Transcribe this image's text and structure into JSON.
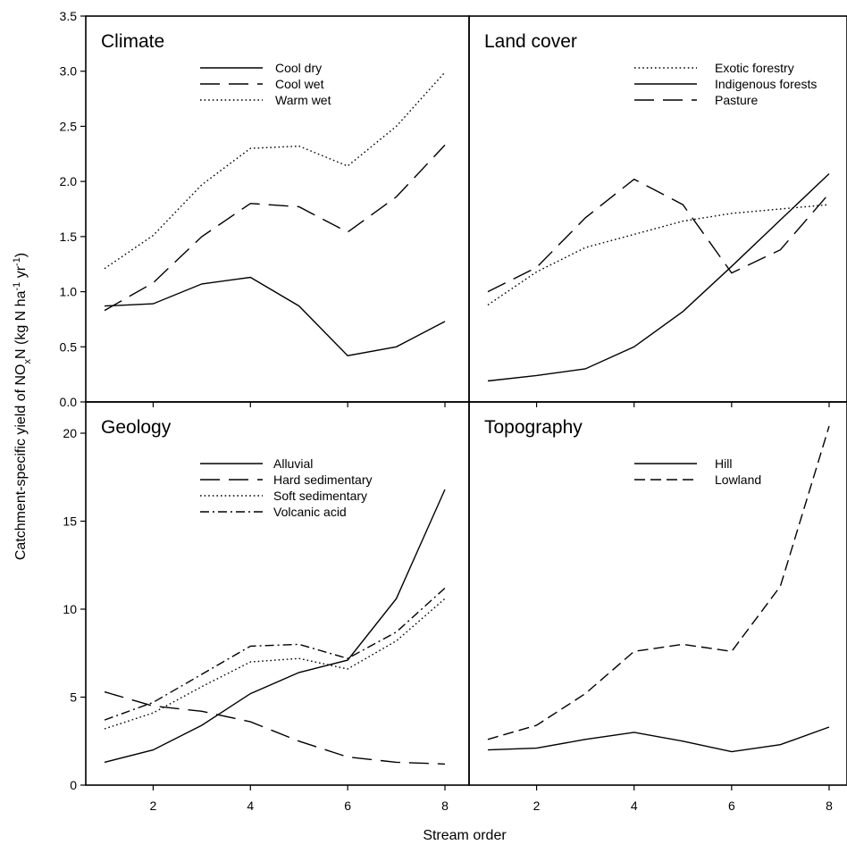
{
  "figure": {
    "ylabel_main": "Catchment-specific yield of NO",
    "ylabel_sub1": "x",
    "ylabel_mid": "N (kg N ha",
    "ylabel_sup1": "-1",
    "ylabel_mid2": " yr",
    "ylabel_sup2": "-1",
    "ylabel_end": ")",
    "xlabel": "Stream order"
  },
  "chart_data": [
    {
      "type": "line",
      "title": "Climate",
      "xlim": [
        0.5,
        8.5
      ],
      "ylim": [
        0,
        3.5
      ],
      "x": [
        1,
        2,
        3,
        4,
        5,
        6,
        7,
        8
      ],
      "xticks": [
        "2",
        "4",
        "6",
        "8"
      ],
      "yticks": [
        "0.0",
        "0.5",
        "1.0",
        "1.5",
        "2.0",
        "2.5",
        "3.0",
        "3.5"
      ],
      "legend_position": "top-right",
      "series": [
        {
          "name": "Cool dry",
          "style": "solid",
          "values": [
            0.87,
            0.89,
            1.07,
            1.13,
            0.87,
            0.42,
            0.5,
            0.73
          ]
        },
        {
          "name": "Cool wet",
          "style": "long-dash",
          "values": [
            0.83,
            1.08,
            1.5,
            1.8,
            1.77,
            1.54,
            1.86,
            2.33
          ]
        },
        {
          "name": "Warm wet",
          "style": "dotted",
          "values": [
            1.21,
            1.51,
            1.97,
            2.3,
            2.32,
            2.14,
            2.5,
            2.99
          ]
        }
      ]
    },
    {
      "type": "line",
      "title": "Land cover",
      "xlim": [
        0.5,
        8.5
      ],
      "ylim": [
        0,
        3.5
      ],
      "x": [
        1,
        2,
        3,
        4,
        5,
        6,
        7,
        8
      ],
      "xticks": [
        "2",
        "4",
        "6",
        "8"
      ],
      "yticks": [],
      "legend_position": "top-right",
      "series": [
        {
          "name": "Exotic forestry",
          "style": "dotted",
          "values": [
            0.88,
            1.18,
            1.4,
            1.52,
            1.64,
            1.71,
            1.75,
            1.79
          ]
        },
        {
          "name": "Indigenous forests",
          "style": "solid",
          "values": [
            0.19,
            0.24,
            0.3,
            0.5,
            0.82,
            1.23,
            1.65,
            2.07
          ]
        },
        {
          "name": "Pasture",
          "style": "long-dash",
          "values": [
            1.0,
            1.22,
            1.67,
            2.02,
            1.79,
            1.17,
            1.38,
            1.89
          ]
        }
      ]
    },
    {
      "type": "line",
      "title": "Geology",
      "xlim": [
        0.5,
        8.5
      ],
      "ylim": [
        0,
        22
      ],
      "x": [
        1,
        2,
        3,
        4,
        5,
        6,
        7,
        8
      ],
      "xticks": [
        "2",
        "4",
        "6",
        "8"
      ],
      "yticks": [
        "0",
        "5",
        "10",
        "15",
        "20"
      ],
      "legend_position": "top-right",
      "series": [
        {
          "name": "Alluvial",
          "style": "solid",
          "values": [
            1.3,
            2.0,
            3.4,
            5.2,
            6.4,
            7.1,
            10.6,
            16.8
          ]
        },
        {
          "name": "Hard sedimentary",
          "style": "long-dash",
          "values": [
            5.3,
            4.5,
            4.2,
            3.6,
            2.5,
            1.6,
            1.3,
            1.2
          ]
        },
        {
          "name": "Soft sedimentary",
          "style": "dotted",
          "values": [
            3.2,
            4.1,
            5.6,
            7.0,
            7.2,
            6.6,
            8.2,
            10.6
          ]
        },
        {
          "name": "Volcanic acid",
          "style": "dash-dot",
          "values": [
            3.7,
            4.7,
            6.3,
            7.9,
            8.0,
            7.2,
            8.7,
            11.2
          ]
        }
      ]
    },
    {
      "type": "line",
      "title": "Topography",
      "xlim": [
        0.5,
        8.5
      ],
      "ylim": [
        0,
        22
      ],
      "x": [
        1,
        2,
        3,
        4,
        5,
        6,
        7,
        8
      ],
      "xticks": [
        "2",
        "4",
        "6",
        "8"
      ],
      "yticks": [],
      "legend_position": "top-right",
      "series": [
        {
          "name": "Hill",
          "style": "solid",
          "values": [
            2.0,
            2.1,
            2.6,
            3.0,
            2.5,
            1.9,
            2.3,
            3.3
          ]
        },
        {
          "name": "Lowland",
          "style": "short-dash",
          "values": [
            2.6,
            3.4,
            5.2,
            7.6,
            8.0,
            7.6,
            11.3,
            20.4
          ]
        }
      ]
    }
  ]
}
